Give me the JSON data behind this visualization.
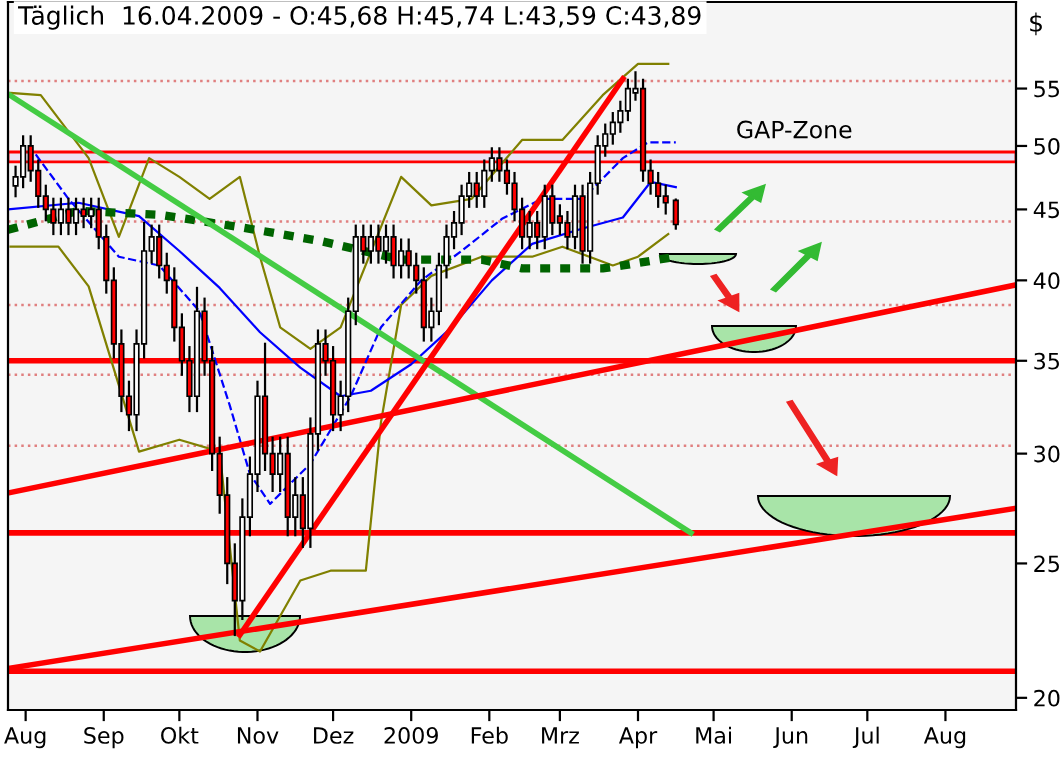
{
  "chart_data": {
    "type": "candlestick",
    "title": "Täglich  16.04.2009 - O:45,68 H:45,74 L:43,59 C:43,89",
    "ylabel": "$",
    "log": "y",
    "grid": false,
    "xlim": [
      "2008-07-25",
      "2009-08-29"
    ],
    "xticks": [
      {
        "value": "2008-08-01",
        "label": "Aug"
      },
      {
        "value": "2008-09-01",
        "label": "Sep"
      },
      {
        "value": "2008-10-01",
        "label": "Okt"
      },
      {
        "value": "2008-11-01",
        "label": "Nov"
      },
      {
        "value": "2008-12-01",
        "label": "Dez"
      },
      {
        "value": "2009-01-01",
        "label": "2009"
      },
      {
        "value": "2009-02-01",
        "label": "Feb"
      },
      {
        "value": "2009-03-01",
        "label": "Mrz"
      },
      {
        "value": "2009-04-01",
        "label": "Apr"
      },
      {
        "value": "2009-05-01",
        "label": "Mai"
      },
      {
        "value": "2009-06-01",
        "label": "Jun"
      },
      {
        "value": "2009-07-01",
        "label": "Jul"
      },
      {
        "value": "2009-08-01",
        "label": "Aug"
      }
    ],
    "ylim": [
      19.6,
      63.5
    ],
    "yticks": [
      20,
      25,
      30,
      35,
      40,
      45,
      50,
      55
    ],
    "ref_lines": [
      {
        "axis": "y",
        "value": 55.7,
        "color": "#e08080",
        "line_style": "dotted"
      },
      {
        "axis": "y",
        "value": 44.1,
        "color": "#e08080",
        "line_style": "dotted"
      },
      {
        "axis": "y",
        "value": 38.4,
        "color": "#e08080",
        "line_style": "dotted"
      },
      {
        "axis": "y",
        "value": 34.2,
        "color": "#e08080",
        "line_style": "dotted"
      },
      {
        "axis": "y",
        "value": 30.4,
        "color": "#e08080",
        "line_style": "dotted"
      },
      {
        "axis": "y",
        "value": 35,
        "color": "#ff0000",
        "line_style": "solid"
      },
      {
        "axis": "y",
        "value": 26.3,
        "color": "#ff0000",
        "line_style": "solid"
      },
      {
        "axis": "y",
        "value": 20.9,
        "color": "#ff0000",
        "line_style": "solid"
      }
    ],
    "bands": [
      {
        "axis": "y",
        "from": 48.7,
        "to": 49.5,
        "label": "GAP-Zone",
        "color": "#ece4f4"
      }
    ],
    "series": [
      {
        "type": "line",
        "color": "#808000",
        "line_style": "solid",
        "x": [
          "2008-07-26",
          "2008-08-07",
          "2008-08-26",
          "2008-09-07",
          "2008-09-19",
          "2008-10-01",
          "2008-10-13",
          "2008-10-25",
          "2008-11-02",
          "2008-11-10",
          "2008-11-22",
          "2008-12-04",
          "2008-12-28",
          "2009-01-09",
          "2009-01-25",
          "2009-02-14",
          "2009-03-02",
          "2009-03-18",
          "2009-04-01",
          "2009-04-13"
        ],
        "values": [
          54.6,
          54.4,
          49,
          43,
          49,
          47.5,
          45.8,
          47.5,
          41.6,
          37,
          35.7,
          37,
          47.5,
          45.3,
          45.8,
          50.5,
          50.5,
          54.4,
          57.3,
          57.3
        ]
      },
      {
        "type": "line",
        "color": "#808000",
        "line_style": "solid",
        "x": [
          "2008-07-26",
          "2008-08-14",
          "2008-08-26",
          "2008-09-07",
          "2008-09-15",
          "2008-10-01",
          "2008-10-17",
          "2008-10-25",
          "2008-11-02",
          "2008-11-18",
          "2008-11-30",
          "2008-12-14",
          "2008-12-20",
          "2008-12-28",
          "2009-01-09",
          "2009-01-29",
          "2009-02-18",
          "2009-03-02",
          "2009-03-22",
          "2009-04-01",
          "2009-04-13"
        ],
        "values": [
          42.3,
          42.3,
          39.6,
          33.6,
          30.1,
          30.7,
          30.1,
          22,
          21.6,
          24.3,
          24.7,
          24.7,
          31.6,
          38.4,
          40.3,
          41.6,
          41.6,
          42.3,
          41,
          41.6,
          43.2
        ]
      },
      {
        "type": "line",
        "color": "#0000ff",
        "line_style": "solid",
        "x": [
          "2008-07-25",
          "2008-08-22",
          "2008-09-15",
          "2008-10-01",
          "2008-10-17",
          "2008-11-02",
          "2008-11-18",
          "2008-12-04",
          "2008-12-16",
          "2009-01-01",
          "2009-01-17",
          "2009-02-02",
          "2009-02-18",
          "2009-03-10",
          "2009-03-26",
          "2009-04-06",
          "2009-04-16"
        ],
        "values": [
          45,
          45.5,
          44.5,
          42,
          39.5,
          36.7,
          34.6,
          33,
          33.3,
          34.8,
          37,
          40,
          42.5,
          43.6,
          44.4,
          47.1,
          46.7
        ]
      },
      {
        "type": "line",
        "color": "#0000ff",
        "line_style": "dashed",
        "x": [
          "2008-08-05",
          "2008-08-18",
          "2008-09-07",
          "2008-09-23",
          "2008-10-09",
          "2008-10-21",
          "2008-10-29",
          "2008-11-06",
          "2008-11-22",
          "2008-12-08",
          "2008-12-20",
          "2009-01-05",
          "2009-01-21",
          "2009-02-06",
          "2009-02-22",
          "2009-03-10",
          "2009-03-26",
          "2009-04-05",
          "2009-04-16"
        ],
        "values": [
          49.3,
          45.8,
          41.6,
          41,
          38,
          32.5,
          29,
          27.6,
          29.5,
          33,
          37,
          40,
          42,
          44.3,
          45.8,
          45.8,
          49,
          50.3,
          50.3
        ]
      },
      {
        "type": "line",
        "color": "#006400",
        "line_style": "dashed",
        "x": [
          "2008-07-25",
          "2008-08-22",
          "2008-09-23",
          "2008-10-25",
          "2008-11-26",
          "2008-12-28",
          "2009-01-29",
          "2009-02-14",
          "2009-03-18",
          "2009-03-26",
          "2009-04-16"
        ],
        "values": [
          43.5,
          44.9,
          44.6,
          43.7,
          42.7,
          41.4,
          41.4,
          40.8,
          40.8,
          41,
          41.6
        ]
      },
      {
        "type": "line",
        "color": "#44cc44",
        "line_style": "solid",
        "x": [
          "2008-07-25",
          "2009-04-22"
        ],
        "values": [
          54.5,
          26.3
        ]
      },
      {
        "type": "line",
        "color": "#ff0000",
        "line_style": "solid",
        "x": [
          "2008-10-25",
          "2009-03-26"
        ],
        "values": [
          22.2,
          55.9
        ]
      },
      {
        "type": "line",
        "color": "#ff0000",
        "line_style": "solid",
        "x": [
          "2008-07-25",
          "2009-08-29"
        ],
        "values": [
          28.1,
          39.7
        ]
      },
      {
        "type": "line",
        "color": "#ff0000",
        "line_style": "solid",
        "x": [
          "2008-07-25",
          "2009-08-29"
        ],
        "values": [
          21.0,
          27.4
        ]
      },
      {
        "colors": [
          "#ffffff",
          "#ffffff",
          "#ff0000",
          "#ff0000",
          "#ff0000",
          "#ff0000",
          "#ffffff",
          "#ff0000",
          "#ffffff",
          "#ff0000",
          "#ffffff",
          "#ff0000",
          "#ff0000",
          "#ff0000",
          "#ff0000",
          "#ff0000",
          "#ffffff",
          "#ffffff",
          "#ffffff",
          "#ff0000",
          "#ff0000",
          "#ff0000",
          "#ff0000",
          "#ff0000",
          "#ffffff",
          "#ff0000",
          "#ff0000",
          "#ff0000",
          "#ff0000",
          "#ff0000",
          "#ffffff",
          "#ffffff",
          "#ffffff",
          "#ff0000",
          "#ff0000",
          "#ffffff",
          "#ff0000",
          "#ffffff",
          "#ff0000",
          "#ffffff",
          "#ffffff",
          "#ff0000",
          "#ff0000",
          "#ffffff",
          "#ffffff",
          "#ffffff",
          "#ff0000",
          "#ffffff",
          "#ff0000",
          "#ffffff",
          "#ff0000",
          "#ffffff",
          "#ff0000",
          "#ff0000",
          "#ff0000",
          "#ffffff",
          "#ffffff",
          "#ffffff",
          "#ffffff",
          "#ffffff",
          "#ffffff",
          "#ff0000",
          "#ffffff",
          "#ffffff",
          "#ff0000",
          "#ff0000",
          "#ff0000",
          "#ff0000",
          "#ffffff",
          "#ff0000",
          "#ffffff",
          "#ff0000",
          "#ff0000",
          "#ff0000",
          "#ffffff",
          "#ff0000",
          "#ffffff",
          "#ffffff",
          "#ffffff",
          "#ffffff",
          "#ffffff",
          "#ffffff",
          "#ffffff",
          "#ff0000",
          "#ff0000",
          "#ff0000",
          "#ff0000",
          "#ff0000"
        ],
        "x": [
          "2008-07-28",
          "2008-07-31",
          "2008-08-03",
          "2008-08-06",
          "2008-08-09",
          "2008-08-12",
          "2008-08-15",
          "2008-08-18",
          "2008-08-21",
          "2008-08-24",
          "2008-08-27",
          "2008-08-30",
          "2008-09-02",
          "2008-09-05",
          "2008-09-08",
          "2008-09-11",
          "2008-09-14",
          "2008-09-17",
          "2008-09-20",
          "2008-09-23",
          "2008-09-26",
          "2008-09-29",
          "2008-10-02",
          "2008-10-05",
          "2008-10-08",
          "2008-10-11",
          "2008-10-14",
          "2008-10-17",
          "2008-10-20",
          "2008-10-23",
          "2008-10-26",
          "2008-10-29",
          "2008-11-01",
          "2008-11-04",
          "2008-11-07",
          "2008-11-10",
          "2008-11-13",
          "2008-11-16",
          "2008-11-19",
          "2008-11-22",
          "2008-11-25",
          "2008-11-28",
          "2008-12-01",
          "2008-12-04",
          "2008-12-07",
          "2008-12-10",
          "2008-12-13",
          "2008-12-16",
          "2008-12-19",
          "2008-12-22",
          "2008-12-25",
          "2008-12-28",
          "2008-12-31",
          "2009-01-03",
          "2009-01-06",
          "2009-01-09",
          "2009-01-12",
          "2009-01-15",
          "2009-01-18",
          "2009-01-21",
          "2009-01-24",
          "2009-01-27",
          "2009-01-30",
          "2009-02-02",
          "2009-02-05",
          "2009-02-08",
          "2009-02-11",
          "2009-02-14",
          "2009-02-17",
          "2009-02-20",
          "2009-02-23",
          "2009-02-26",
          "2009-03-01",
          "2009-03-04",
          "2009-03-07",
          "2009-03-10",
          "2009-03-13",
          "2009-03-16",
          "2009-03-19",
          "2009-03-22",
          "2009-03-25",
          "2009-03-28",
          "2009-03-31",
          "2009-04-03",
          "2009-04-06",
          "2009-04-09",
          "2009-04-12",
          "2009-04-16"
        ],
        "ohlc": [
          [
            46.8,
            48.3,
            46.0,
            47.5
          ],
          [
            47.5,
            50.8,
            46.7,
            50
          ],
          [
            50,
            50.8,
            47.2,
            48
          ],
          [
            48,
            48.8,
            45.2,
            46
          ],
          [
            46,
            46.8,
            44.2,
            45
          ],
          [
            45,
            45.8,
            43.2,
            44
          ],
          [
            44,
            45.8,
            43.2,
            45
          ],
          [
            45,
            45.8,
            43.2,
            44
          ],
          [
            44,
            45.8,
            43.2,
            45
          ],
          [
            45,
            45.8,
            43.7,
            44.5
          ],
          [
            44.5,
            45.8,
            43.7,
            45
          ],
          [
            45,
            45.8,
            42.2,
            43
          ],
          [
            43,
            43.8,
            39.2,
            40
          ],
          [
            40,
            40.8,
            35.2,
            36
          ],
          [
            36,
            36.8,
            32.2,
            33
          ],
          [
            33,
            33.8,
            31.2,
            32
          ],
          [
            32,
            36.8,
            31.2,
            36
          ],
          [
            36,
            44,
            35.2,
            42
          ],
          [
            42,
            43.8,
            41.2,
            43
          ],
          [
            43,
            43.8,
            40.2,
            41
          ],
          [
            41,
            41.8,
            39.2,
            40
          ],
          [
            40,
            40.8,
            36.2,
            37
          ],
          [
            37,
            37.8,
            34.2,
            35
          ],
          [
            35,
            35.8,
            32.2,
            33
          ],
          [
            33,
            39.5,
            32.2,
            38
          ],
          [
            38,
            38.8,
            34.2,
            35
          ],
          [
            35,
            35.8,
            29.2,
            30
          ],
          [
            30,
            30.8,
            27.2,
            28
          ],
          [
            28,
            28.8,
            24.2,
            25
          ],
          [
            25,
            25.8,
            22.2,
            23.5
          ],
          [
            23.5,
            27.8,
            22.8,
            27
          ],
          [
            27,
            29.8,
            26.2,
            29
          ],
          [
            29,
            33.8,
            28.2,
            33
          ],
          [
            33,
            36,
            29.2,
            30
          ],
          [
            30,
            30.8,
            28.2,
            29
          ],
          [
            29,
            30.8,
            28.2,
            30
          ],
          [
            30,
            30.8,
            26.2,
            27
          ],
          [
            27,
            28.8,
            26.2,
            28
          ],
          [
            28,
            28.8,
            25.7,
            26.5
          ],
          [
            26.5,
            31.8,
            25.7,
            31
          ],
          [
            31,
            36.8,
            30.2,
            36
          ],
          [
            36,
            36.8,
            34.2,
            35
          ],
          [
            35,
            35.8,
            31.2,
            32
          ],
          [
            32,
            33.8,
            31.2,
            33
          ],
          [
            33,
            38.8,
            32.2,
            38
          ],
          [
            38,
            43.8,
            37.2,
            43
          ],
          [
            43,
            43.8,
            41.2,
            42
          ],
          [
            42,
            43.8,
            41.2,
            43
          ],
          [
            43,
            43.8,
            41.2,
            42
          ],
          [
            42,
            43.8,
            41.2,
            43
          ],
          [
            43,
            43.8,
            40.2,
            41
          ],
          [
            41,
            42.8,
            40.2,
            42
          ],
          [
            42,
            42.8,
            40.2,
            41
          ],
          [
            41,
            41.8,
            39.2,
            40
          ],
          [
            40,
            40.8,
            36.2,
            37
          ],
          [
            37,
            38.8,
            36.2,
            38
          ],
          [
            38,
            41.8,
            37.2,
            41
          ],
          [
            41,
            43.8,
            40.2,
            43
          ],
          [
            43,
            44.8,
            42.2,
            44
          ],
          [
            44,
            46.8,
            43.2,
            46
          ],
          [
            46,
            47.8,
            45.2,
            47
          ],
          [
            47,
            47.8,
            45.2,
            46
          ],
          [
            46,
            48.8,
            45.2,
            48
          ],
          [
            48,
            49.8,
            47.2,
            49
          ],
          [
            49,
            49.8,
            47.2,
            48
          ],
          [
            48,
            48.8,
            46.2,
            47
          ],
          [
            47,
            47.8,
            44.2,
            45
          ],
          [
            45,
            45.8,
            42.2,
            43
          ],
          [
            43,
            44.8,
            42.2,
            44
          ],
          [
            44,
            44.8,
            42.2,
            43
          ],
          [
            43,
            46.8,
            42.2,
            46
          ],
          [
            46,
            46.8,
            43.2,
            44
          ],
          [
            44.5,
            45.3,
            43.2,
            44
          ],
          [
            44,
            44.8,
            42.2,
            43
          ],
          [
            43,
            46.8,
            42.2,
            46
          ],
          [
            46,
            46.8,
            41.2,
            42
          ],
          [
            42,
            47.8,
            41.2,
            47
          ],
          [
            47,
            50.8,
            46.2,
            50
          ],
          [
            50,
            51.8,
            49.2,
            51
          ],
          [
            51,
            52.8,
            50.2,
            52
          ],
          [
            52,
            53.8,
            51.2,
            53
          ],
          [
            53,
            55.8,
            52.2,
            55
          ],
          [
            54.6,
            56.5,
            54,
            55
          ],
          [
            55,
            55.8,
            47.2,
            48
          ],
          [
            48,
            48.8,
            46.2,
            47
          ],
          [
            47,
            47.8,
            45.2,
            46
          ],
          [
            46,
            46.8,
            44.7,
            45.5
          ],
          [
            45.68,
            45.74,
            43.59,
            43.89
          ]
        ]
      }
    ]
  }
}
